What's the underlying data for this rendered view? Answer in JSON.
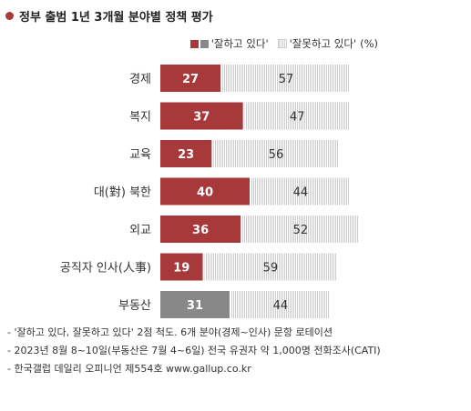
{
  "chart_data": {
    "type": "bar",
    "stacked": true,
    "orientation": "horizontal",
    "title": "정부 출범 1년 3개월 분야별 정책 평가",
    "unit": "(%)",
    "categories": [
      "경제",
      "복지",
      "교육",
      "대(對) 북한",
      "외교",
      "공직자 인사(人事)",
      "부동산"
    ],
    "series": [
      {
        "name": "'잘하고 있다'",
        "values": [
          27,
          37,
          23,
          40,
          36,
          19,
          31
        ]
      },
      {
        "name": "'잘못하고 있다'",
        "values": [
          57,
          47,
          56,
          44,
          52,
          59,
          44
        ]
      }
    ],
    "xlim": [
      0,
      100
    ],
    "grid": false,
    "legend": "top-right",
    "colors": {
      "good": "#a8393b",
      "neutral_good": "#888888",
      "bad": "#d0d0d0",
      "text_light": "#ffffff"
    },
    "neutral_categories": [
      "부동산"
    ]
  },
  "notes": [
    "- '잘하고 있다, 잘못하고 있다' 2점 척도. 6개 분야(경제~인사) 문항 로테이션",
    "- 2023년 8월 8~10일(부동산은 7월 4~6일) 전국 유권자 약 1,000명 전화조사(CATI)",
    "- 한국갤럽 데일리 오피니언 제554호 www.gallup.co.kr"
  ]
}
